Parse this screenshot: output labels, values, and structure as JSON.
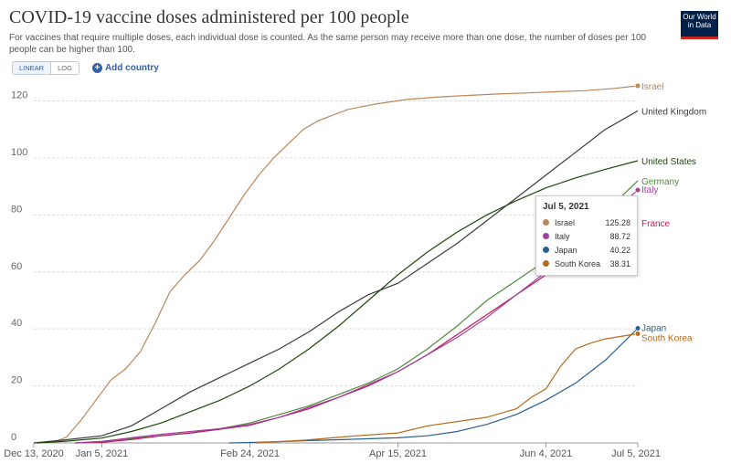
{
  "header": {
    "title": "COVID-19 vaccine doses administered per 100 people",
    "subtitle": "For vaccines that require multiple doses, each individual dose is counted. As the same person may receive more than one dose, the number of doses per 100 people can be higher than 100.",
    "logo_line1": "Our World",
    "logo_line2": "in Data"
  },
  "controls": {
    "linear_label": "LINEAR",
    "log_label": "LOG",
    "add_country_label": "Add country",
    "add_icon": "plus-circle-icon"
  },
  "colors": {
    "Israel": "#b9875a",
    "United Kingdom": "#3b3b3b",
    "United States": "#1c4a0a",
    "Germany": "#4f8a3a",
    "Italy": "#a03f9e",
    "France": "#c2185b",
    "Japan": "#2b5f8f",
    "South Korea": "#b56a1c"
  },
  "tooltip": {
    "date": "Jul 5, 2021",
    "rows": [
      {
        "name": "Israel",
        "value": "125.28",
        "color": "#b9875a"
      },
      {
        "name": "Italy",
        "value": "88.72",
        "color": "#a03f9e"
      },
      {
        "name": "Japan",
        "value": "40.22",
        "color": "#2b5f8f"
      },
      {
        "name": "South Korea",
        "value": "38.31",
        "color": "#b56a1c"
      }
    ]
  },
  "chart_data": {
    "type": "line",
    "xlim": [
      "2020-12-13",
      "2021-07-05"
    ],
    "ylim": [
      0,
      128
    ],
    "yticks": [
      0,
      20,
      40,
      60,
      80,
      100,
      120
    ],
    "xticks": [
      {
        "date": "2020-12-13",
        "label": "Dec 13, 2020"
      },
      {
        "date": "2021-01-05",
        "label": "Jan 5, 2021"
      },
      {
        "date": "2021-02-24",
        "label": "Feb 24, 2021"
      },
      {
        "date": "2021-04-15",
        "label": "Apr 15, 2021"
      },
      {
        "date": "2021-06-04",
        "label": "Jun 4, 2021"
      },
      {
        "date": "2021-07-05",
        "label": "Jul 5, 2021"
      }
    ],
    "grid": true,
    "series": [
      {
        "name": "Israel",
        "points": [
          [
            "2020-12-19",
            0
          ],
          [
            "2020-12-24",
            2
          ],
          [
            "2020-12-29",
            8
          ],
          [
            "2021-01-03",
            15
          ],
          [
            "2021-01-08",
            22
          ],
          [
            "2021-01-13",
            26
          ],
          [
            "2021-01-18",
            32
          ],
          [
            "2021-01-23",
            42
          ],
          [
            "2021-01-28",
            53
          ],
          [
            "2021-02-02",
            59
          ],
          [
            "2021-02-07",
            64
          ],
          [
            "2021-02-12",
            71
          ],
          [
            "2021-02-17",
            79
          ],
          [
            "2021-02-22",
            87
          ],
          [
            "2021-02-27",
            94
          ],
          [
            "2021-03-04",
            100
          ],
          [
            "2021-03-09",
            105
          ],
          [
            "2021-03-14",
            110
          ],
          [
            "2021-03-19",
            113
          ],
          [
            "2021-03-24",
            115
          ],
          [
            "2021-03-29",
            117
          ],
          [
            "2021-04-03",
            118
          ],
          [
            "2021-04-08",
            119
          ],
          [
            "2021-04-18",
            120.5
          ],
          [
            "2021-04-28",
            121.3
          ],
          [
            "2021-05-08",
            121.9
          ],
          [
            "2021-05-18",
            122.4
          ],
          [
            "2021-05-28",
            122.8
          ],
          [
            "2021-06-07",
            123.2
          ],
          [
            "2021-06-17",
            123.6
          ],
          [
            "2021-06-27",
            124.4
          ],
          [
            "2021-07-05",
            125.28
          ]
        ]
      },
      {
        "name": "United Kingdom",
        "points": [
          [
            "2020-12-13",
            0
          ],
          [
            "2020-12-23",
            1
          ],
          [
            "2021-01-05",
            2.5
          ],
          [
            "2021-01-15",
            6
          ],
          [
            "2021-01-25",
            12
          ],
          [
            "2021-02-04",
            18
          ],
          [
            "2021-02-14",
            23
          ],
          [
            "2021-02-24",
            28
          ],
          [
            "2021-03-06",
            33
          ],
          [
            "2021-03-16",
            39
          ],
          [
            "2021-03-26",
            46
          ],
          [
            "2021-04-05",
            52
          ],
          [
            "2021-04-15",
            56
          ],
          [
            "2021-04-25",
            63
          ],
          [
            "2021-05-05",
            70
          ],
          [
            "2021-05-15",
            78
          ],
          [
            "2021-05-25",
            86
          ],
          [
            "2021-06-04",
            94
          ],
          [
            "2021-06-14",
            102
          ],
          [
            "2021-06-24",
            110
          ],
          [
            "2021-07-05",
            116.5
          ]
        ]
      },
      {
        "name": "United States",
        "points": [
          [
            "2020-12-14",
            0
          ],
          [
            "2020-12-24",
            0.6
          ],
          [
            "2021-01-05",
            1.7
          ],
          [
            "2021-01-15",
            4
          ],
          [
            "2021-01-25",
            7
          ],
          [
            "2021-02-04",
            11
          ],
          [
            "2021-02-14",
            15
          ],
          [
            "2021-02-24",
            20
          ],
          [
            "2021-03-06",
            26
          ],
          [
            "2021-03-16",
            33
          ],
          [
            "2021-03-26",
            41
          ],
          [
            "2021-04-05",
            50
          ],
          [
            "2021-04-15",
            59
          ],
          [
            "2021-04-25",
            67
          ],
          [
            "2021-05-05",
            74
          ],
          [
            "2021-05-15",
            80
          ],
          [
            "2021-05-25",
            85
          ],
          [
            "2021-06-04",
            89.5
          ],
          [
            "2021-06-14",
            93
          ],
          [
            "2021-06-24",
            96
          ],
          [
            "2021-07-05",
            99
          ]
        ]
      },
      {
        "name": "Germany",
        "points": [
          [
            "2020-12-27",
            0
          ],
          [
            "2021-01-05",
            0.5
          ],
          [
            "2021-01-15",
            1.5
          ],
          [
            "2021-01-25",
            2.5
          ],
          [
            "2021-02-04",
            3.5
          ],
          [
            "2021-02-14",
            5
          ],
          [
            "2021-02-24",
            7
          ],
          [
            "2021-03-06",
            10
          ],
          [
            "2021-03-16",
            13
          ],
          [
            "2021-03-26",
            17
          ],
          [
            "2021-04-05",
            21
          ],
          [
            "2021-04-15",
            26
          ],
          [
            "2021-04-25",
            33
          ],
          [
            "2021-05-05",
            41
          ],
          [
            "2021-05-15",
            50
          ],
          [
            "2021-05-25",
            57
          ],
          [
            "2021-06-04",
            64
          ],
          [
            "2021-06-14",
            72
          ],
          [
            "2021-06-24",
            81
          ],
          [
            "2021-07-05",
            92
          ]
        ]
      },
      {
        "name": "France",
        "points": [
          [
            "2020-12-27",
            0
          ],
          [
            "2021-01-05",
            0.2
          ],
          [
            "2021-01-15",
            1.2
          ],
          [
            "2021-01-25",
            2.5
          ],
          [
            "2021-02-04",
            3.5
          ],
          [
            "2021-02-14",
            4.8
          ],
          [
            "2021-02-24",
            6.2
          ],
          [
            "2021-03-06",
            9
          ],
          [
            "2021-03-16",
            12
          ],
          [
            "2021-03-26",
            16
          ],
          [
            "2021-04-05",
            20
          ],
          [
            "2021-04-15",
            25
          ],
          [
            "2021-04-25",
            31
          ],
          [
            "2021-05-05",
            38
          ],
          [
            "2021-05-15",
            45
          ],
          [
            "2021-05-25",
            52
          ],
          [
            "2021-06-04",
            59
          ],
          [
            "2021-06-14",
            66
          ],
          [
            "2021-06-24",
            74
          ],
          [
            "2021-07-05",
            82
          ]
        ]
      },
      {
        "name": "Italy",
        "points": [
          [
            "2020-12-27",
            0
          ],
          [
            "2021-01-05",
            0.5
          ],
          [
            "2021-01-15",
            1.8
          ],
          [
            "2021-01-25",
            3
          ],
          [
            "2021-02-04",
            4
          ],
          [
            "2021-02-14",
            5
          ],
          [
            "2021-02-24",
            6.5
          ],
          [
            "2021-03-06",
            9
          ],
          [
            "2021-03-16",
            12.5
          ],
          [
            "2021-03-26",
            16
          ],
          [
            "2021-04-05",
            20.5
          ],
          [
            "2021-04-15",
            25
          ],
          [
            "2021-04-25",
            31
          ],
          [
            "2021-05-05",
            37
          ],
          [
            "2021-05-15",
            44
          ],
          [
            "2021-05-25",
            52
          ],
          [
            "2021-06-04",
            60
          ],
          [
            "2021-06-14",
            69
          ],
          [
            "2021-06-24",
            79
          ],
          [
            "2021-07-05",
            88.72
          ]
        ]
      },
      {
        "name": "Japan",
        "points": [
          [
            "2021-02-17",
            0
          ],
          [
            "2021-03-01",
            0.3
          ],
          [
            "2021-03-15",
            0.8
          ],
          [
            "2021-04-01",
            1.3
          ],
          [
            "2021-04-15",
            1.8
          ],
          [
            "2021-04-25",
            2.5
          ],
          [
            "2021-05-05",
            4
          ],
          [
            "2021-05-15",
            6.5
          ],
          [
            "2021-05-25",
            10
          ],
          [
            "2021-06-04",
            15
          ],
          [
            "2021-06-14",
            21
          ],
          [
            "2021-06-24",
            29
          ],
          [
            "2021-07-05",
            40.22
          ]
        ]
      },
      {
        "name": "South Korea",
        "points": [
          [
            "2021-02-26",
            0
          ],
          [
            "2021-03-15",
            1
          ],
          [
            "2021-04-01",
            2.5
          ],
          [
            "2021-04-15",
            3.5
          ],
          [
            "2021-04-25",
            6
          ],
          [
            "2021-05-05",
            7.5
          ],
          [
            "2021-05-15",
            9
          ],
          [
            "2021-05-25",
            12
          ],
          [
            "2021-05-30",
            16
          ],
          [
            "2021-06-04",
            19
          ],
          [
            "2021-06-09",
            27
          ],
          [
            "2021-06-14",
            33
          ],
          [
            "2021-06-19",
            35
          ],
          [
            "2021-06-24",
            36.5
          ],
          [
            "2021-07-05",
            38.31
          ]
        ]
      }
    ],
    "end_labels": [
      "Israel",
      "United Kingdom",
      "United States",
      "Germany",
      "Italy",
      "France",
      "Japan",
      "South Korea"
    ]
  }
}
